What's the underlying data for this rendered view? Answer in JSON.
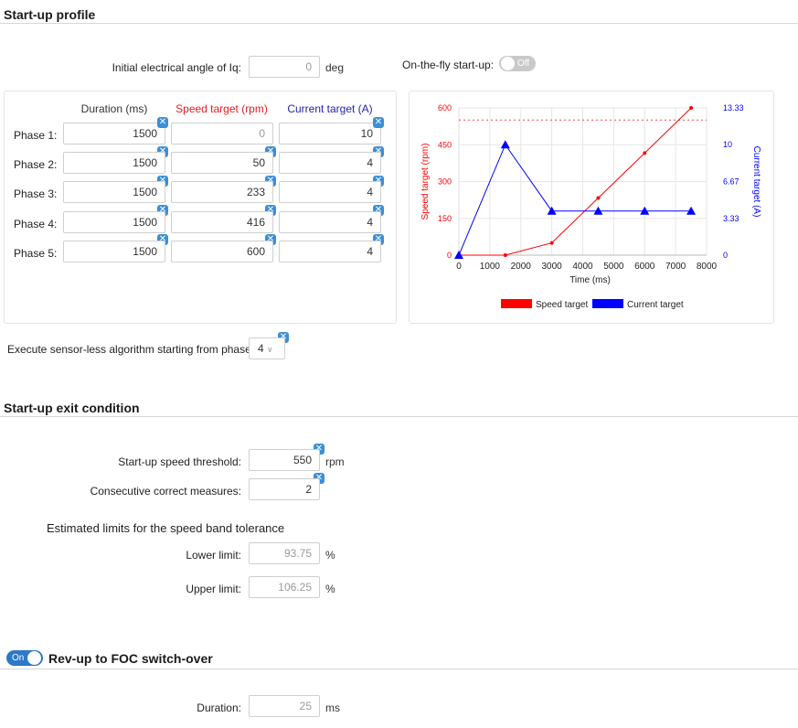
{
  "startup_profile": {
    "title": "Start-up profile",
    "initial_angle": {
      "label": "Initial electrical angle of Iq:",
      "value": "0",
      "unit": "deg"
    },
    "on_the_fly": {
      "label": "On-the-fly start-up:",
      "state": "Off"
    },
    "table": {
      "headers": {
        "duration": "Duration (ms)",
        "speed": "Speed target (rpm)",
        "current": "Current target (A)"
      },
      "phases": [
        {
          "label": "Phase 1:",
          "duration": "1500",
          "speed": "0",
          "current": "10"
        },
        {
          "label": "Phase 2:",
          "duration": "1500",
          "speed": "50",
          "current": "4"
        },
        {
          "label": "Phase 3:",
          "duration": "1500",
          "speed": "233",
          "current": "4"
        },
        {
          "label": "Phase 4:",
          "duration": "1500",
          "speed": "416",
          "current": "4"
        },
        {
          "label": "Phase 5:",
          "duration": "1500",
          "speed": "600",
          "current": "4"
        }
      ]
    },
    "sensorless": {
      "label": "Execute sensor-less algorithm starting from phase:",
      "value": "4"
    }
  },
  "chart_data": {
    "type": "line",
    "xlabel": "Time (ms)",
    "ylabel": "Speed target (rpm)",
    "y2label": "Current target (A)",
    "xlim": [
      0,
      8000
    ],
    "ylim": [
      0,
      600
    ],
    "y2lim": [
      0,
      13.33
    ],
    "x_ticks": [
      "0",
      "1000",
      "2000",
      "3000",
      "4000",
      "5000",
      "6000",
      "7000",
      "8000"
    ],
    "y_ticks": [
      "0",
      "150",
      "300",
      "450",
      "600"
    ],
    "y2_ticks": [
      "0",
      "3.33",
      "6.67",
      "10",
      "13.33"
    ],
    "threshold_rpm": 550,
    "series": [
      {
        "name": "Speed target",
        "axis": "left",
        "color": "#ff0000",
        "x": [
          0,
          1500,
          3000,
          4500,
          6000,
          7500
        ],
        "values": [
          0,
          0,
          50,
          233,
          416,
          600
        ]
      },
      {
        "name": "Current target",
        "axis": "right",
        "color": "#0000ff",
        "x": [
          0,
          1500,
          3000,
          4500,
          6000,
          7500
        ],
        "values": [
          0,
          10,
          4,
          4,
          4,
          4
        ]
      }
    ],
    "legend": "bottom",
    "grid": true
  },
  "exit_condition": {
    "title": "Start-up exit condition",
    "speed_threshold": {
      "label": "Start-up speed threshold:",
      "value": "550",
      "unit": "rpm"
    },
    "consecutive": {
      "label": "Consecutive correct measures:",
      "value": "2"
    },
    "band_title": "Estimated limits for the speed band tolerance",
    "lower": {
      "label": "Lower limit:",
      "value": "93.75",
      "unit": "%"
    },
    "upper": {
      "label": "Upper limit:",
      "value": "106.25",
      "unit": "%"
    }
  },
  "revup": {
    "title": "Rev-up to FOC switch-over",
    "state": "On",
    "duration": {
      "label": "Duration:",
      "value": "25",
      "unit": "ms"
    }
  },
  "colors": {
    "speed": "#ff0000",
    "current": "#0000ff",
    "badge": "#3b8fd9",
    "toggle_on": "#2e78c8"
  },
  "icons": {
    "clear": "x-badge-icon",
    "dropdown": "chevron-down-icon"
  }
}
